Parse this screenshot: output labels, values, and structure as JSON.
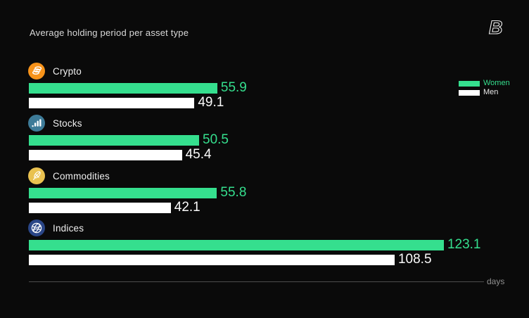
{
  "header": {
    "title": "Average holding period per asset type",
    "logo_letter": "B"
  },
  "legend": {
    "items": [
      {
        "label": "Women",
        "color": "#35df8e"
      },
      {
        "label": "Men",
        "color": "#ffffff"
      }
    ]
  },
  "axis": {
    "unit_label": "days",
    "line_color": "#4d4d4d"
  },
  "colors": {
    "background": "#0a0a0a",
    "women_bar": "#35df8e",
    "men_bar": "#ffffff",
    "women_value_text": "#35df8e",
    "men_value_text": "#fafafa"
  },
  "chart_data": {
    "type": "bar",
    "orientation": "horizontal",
    "title": "Average holding period per asset type",
    "xlabel": "days",
    "xlim": [
      0,
      135
    ],
    "grid": false,
    "legend_position": "right",
    "categories": [
      "Crypto",
      "Stocks",
      "Commodities",
      "Indices"
    ],
    "series": [
      {
        "name": "Women",
        "color": "#35df8e",
        "values": [
          55.9,
          50.5,
          55.8,
          123.1
        ]
      },
      {
        "name": "Men",
        "color": "#ffffff",
        "values": [
          49.1,
          45.4,
          42.1,
          108.5
        ]
      }
    ],
    "groups": [
      {
        "label": "Crypto",
        "icon": "crypto-coins-icon",
        "icon_color": "#f7931a",
        "women": 55.9,
        "men": 49.1
      },
      {
        "label": "Stocks",
        "icon": "stocks-bar-chart-icon",
        "icon_color": "#3d7b98",
        "women": 50.5,
        "men": 45.4
      },
      {
        "label": "Commodities",
        "icon": "commodities-wheat-icon",
        "icon_color": "#e9c250",
        "women": 55.8,
        "men": 42.1
      },
      {
        "label": "Indices",
        "icon": "indices-globe-icon",
        "icon_color": "#2a4687",
        "women": 123.1,
        "men": 108.5
      }
    ]
  }
}
